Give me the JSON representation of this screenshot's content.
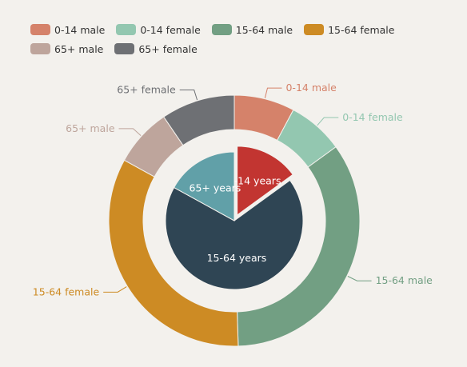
{
  "chart_data": {
    "type": "pie",
    "legend": {
      "position": "top-left",
      "items": [
        {
          "label": "0-14 male",
          "color": "#d5826a"
        },
        {
          "label": "0-14 female",
          "color": "#93c7b0"
        },
        {
          "label": "15-64 male",
          "color": "#729f83"
        },
        {
          "label": "15-64 female",
          "color": "#cd8b24"
        },
        {
          "label": "65+ male",
          "color": "#bea59c"
        },
        {
          "label": "65+ female",
          "color": "#6e7074"
        }
      ]
    },
    "inner_pie": {
      "slices": [
        {
          "label": "0-14 years",
          "value": 15,
          "color": "#c23531",
          "selected": true
        },
        {
          "label": "15-64 years",
          "value": 68,
          "color": "#2f4554"
        },
        {
          "label": "65+ years",
          "value": 17,
          "color": "#61a0a8"
        }
      ]
    },
    "outer_ring": {
      "slices": [
        {
          "label": "0-14 male",
          "value": 7.8,
          "color": "#d5826a"
        },
        {
          "label": "0-14 female",
          "value": 7.2,
          "color": "#93c7b0"
        },
        {
          "label": "15-64 male",
          "value": 34.5,
          "color": "#729f83"
        },
        {
          "label": "15-64 female",
          "value": 33.5,
          "color": "#cd8b24"
        },
        {
          "label": "65+ male",
          "value": 7.5,
          "color": "#bea59c"
        },
        {
          "label": "65+ female",
          "value": 9.5,
          "color": "#6e7074"
        }
      ]
    }
  }
}
